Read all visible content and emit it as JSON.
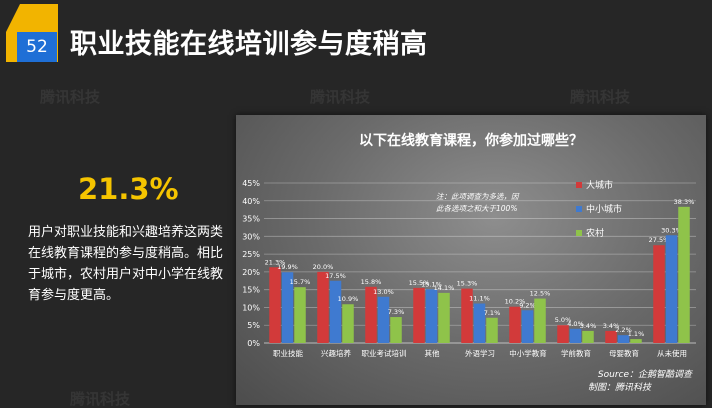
{
  "slide": {
    "page_number": "52",
    "title": "职业技能在线培训参与度稍高",
    "stat_value": "21.3%",
    "description": "用户对职业技能和兴趣培养这两类在线教育课程的参与度稍高。相比于城市，农村用户对中小学在线教育参与度更高。",
    "watermark": "腾讯科技"
  },
  "colors": {
    "accent_yellow": "#f2b400",
    "badge_blue": "#1f6fd6",
    "stat_yellow": "#f5c400"
  },
  "chart_data": {
    "type": "bar",
    "title": "以下在线教育课程，你参加过哪些？",
    "categories": [
      "职业技能",
      "兴趣培养",
      "职业考试培训",
      "其他",
      "外语学习",
      "中小学教育",
      "学前教育",
      "母婴教育",
      "从未使用"
    ],
    "series": [
      {
        "name": "大城市",
        "color": "#d23a3a",
        "values": [
          21.3,
          20.0,
          15.8,
          15.5,
          15.3,
          10.2,
          5.0,
          3.4,
          27.5
        ],
        "labels": [
          "21.3%",
          "20.0%",
          "15.8%",
          "15.5%",
          "15.3%",
          "10.2%",
          "5.0%",
          "3.4%",
          "27.5%"
        ]
      },
      {
        "name": "中小城市",
        "color": "#3f7ad0",
        "values": [
          19.9,
          17.5,
          13.0,
          15.1,
          11.1,
          9.2,
          4.0,
          2.2,
          30.3
        ],
        "labels": [
          "19.9%",
          "17.5%",
          "13.0%",
          "15.1%",
          "11.1%",
          "9.2%",
          "4.0%",
          "2.2%",
          "30.3%"
        ]
      },
      {
        "name": "农村",
        "color": "#8fc34a",
        "values": [
          15.7,
          10.9,
          7.3,
          14.1,
          7.1,
          12.5,
          3.4,
          1.1,
          38.3
        ],
        "labels": [
          "15.7%",
          "10.9%",
          "7.3%",
          "14.1%",
          "7.1%",
          "12.5%",
          "3.4%",
          "1.1%",
          "38.3%"
        ]
      }
    ],
    "y_ticks": [
      "0%",
      "5%",
      "10%",
      "15%",
      "20%",
      "25%",
      "30%",
      "35%",
      "40%",
      "45%"
    ],
    "ylim": [
      0,
      45
    ],
    "note_line1": "注：此项调查为多选，因",
    "note_line2": "此各选项之和大于100%",
    "source": "Source：企鹅智酷调查",
    "producer": "制图：腾讯科技",
    "legend_position": "right"
  }
}
